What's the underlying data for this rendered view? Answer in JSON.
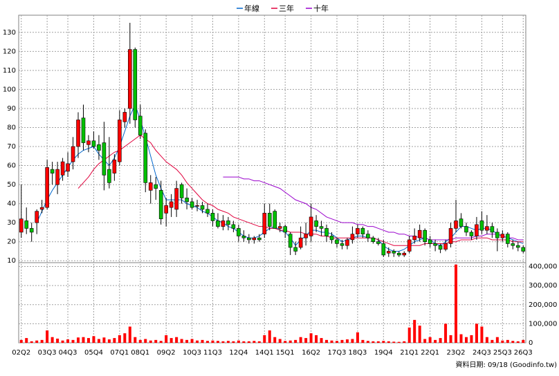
{
  "chart_data": {
    "type": "candlestick",
    "categories": [
      "02Q2",
      null,
      null,
      null,
      null,
      "03Q3",
      null,
      null,
      null,
      "04Q3",
      null,
      null,
      null,
      null,
      "05Q4",
      null,
      null,
      null,
      null,
      "07Q1",
      null,
      null,
      null,
      "08Q1",
      null,
      null,
      null,
      null,
      "09Q2",
      null,
      null,
      null,
      null,
      "10Q3",
      null,
      null,
      null,
      "11Q3",
      null,
      null,
      null,
      null,
      "12Q4",
      null,
      null,
      null,
      null,
      "14Q1",
      null,
      null,
      null,
      "15Q1",
      null,
      null,
      null,
      null,
      "16Q2",
      null,
      null,
      null,
      null,
      "17Q3",
      null,
      null,
      null,
      "18Q3",
      null,
      null,
      null,
      null,
      "19Q4",
      null,
      null,
      null,
      null,
      "21Q1",
      null,
      null,
      null,
      "22Q1",
      null,
      null,
      null,
      null,
      "23Q2",
      null,
      null,
      null,
      null,
      "24Q3",
      null,
      null,
      null,
      "25Q3",
      null,
      null,
      null,
      "26Q3"
    ],
    "open": [
      25,
      31,
      27,
      30,
      37,
      38,
      58,
      50,
      55,
      57,
      62,
      70,
      85,
      71,
      73,
      71,
      72,
      58,
      56,
      62,
      83,
      90,
      121,
      86,
      77,
      47,
      50,
      47,
      35,
      38,
      37,
      50,
      43,
      41,
      39,
      39,
      37,
      35,
      31,
      28,
      31,
      29,
      27,
      23,
      22,
      21,
      22,
      24,
      35,
      36,
      27,
      28,
      24,
      17,
      17,
      22,
      23,
      31,
      28,
      27,
      23,
      21,
      19,
      18,
      21,
      24,
      27,
      24,
      22,
      20,
      19,
      14,
      15,
      14,
      13,
      15,
      21,
      22,
      26,
      21,
      19,
      18,
      16,
      19,
      27,
      32,
      28,
      25,
      23,
      31,
      26,
      28,
      25,
      22,
      24,
      19,
      18,
      17
    ],
    "high": [
      50,
      38,
      30,
      37,
      42,
      63,
      62,
      62,
      64,
      67,
      75,
      88,
      92,
      76,
      78,
      76,
      83,
      75,
      66,
      89,
      90,
      135,
      122,
      92,
      79,
      55,
      54,
      52,
      43,
      45,
      52,
      51,
      48,
      43,
      42,
      41,
      40,
      37,
      35,
      34,
      33,
      31,
      29,
      26,
      24,
      23,
      24,
      40,
      40,
      37,
      30,
      29,
      25,
      20,
      28,
      30,
      40,
      34,
      31,
      29,
      25,
      22,
      21,
      22,
      28,
      29,
      28,
      26,
      23,
      22,
      21,
      17,
      16,
      15,
      15,
      23,
      27,
      29,
      27,
      23,
      21,
      19,
      21,
      30,
      42,
      35,
      30,
      26,
      33,
      36,
      34,
      30,
      27,
      26,
      25,
      21,
      20,
      18
    ],
    "low": [
      22,
      24,
      20,
      24,
      35,
      37,
      50,
      45,
      52,
      54,
      58,
      64,
      68,
      67,
      69,
      63,
      47,
      48,
      52,
      60,
      80,
      82,
      80,
      74,
      46,
      40,
      42,
      29,
      28,
      33,
      33,
      40,
      37,
      37,
      36,
      35,
      33,
      28,
      27,
      26,
      26,
      25,
      20,
      20,
      19,
      19,
      20,
      22,
      26,
      27,
      25,
      22,
      13,
      13,
      16,
      18,
      20,
      25,
      23,
      20,
      19,
      17,
      16,
      16,
      19,
      22,
      22,
      20,
      19,
      18,
      12,
      12,
      12,
      12,
      12,
      14,
      19,
      20,
      18,
      17,
      15,
      14,
      15,
      17,
      25,
      27,
      23,
      21,
      21,
      24,
      24,
      22,
      15,
      20,
      17,
      16,
      15,
      14
    ],
    "close": [
      32,
      27,
      25,
      36,
      38,
      59,
      56,
      58,
      62,
      61,
      70,
      84,
      72,
      73,
      70,
      68,
      55,
      51,
      63,
      84,
      88,
      121,
      84,
      76,
      51,
      51,
      48,
      32,
      39,
      41,
      48,
      43,
      41,
      38,
      39,
      37,
      35,
      31,
      28,
      31,
      29,
      27,
      23,
      22,
      21,
      22,
      21,
      35,
      28,
      27,
      28,
      25,
      17,
      15,
      22,
      24,
      33,
      28,
      27,
      23,
      21,
      19,
      18,
      21,
      24,
      27,
      24,
      22,
      20,
      19,
      13,
      15,
      14,
      13,
      14,
      21,
      23,
      26,
      20,
      19,
      18,
      16,
      19,
      27,
      31,
      28,
      25,
      23,
      29,
      26,
      28,
      25,
      22,
      24,
      19,
      18,
      17,
      15
    ],
    "up_color": "#ff0000",
    "down_color": "#00c000",
    "series": [
      {
        "name": "年線",
        "color": "#0066cc",
        "values": [
          null,
          null,
          null,
          30,
          36,
          42,
          47,
          51,
          55,
          59,
          63,
          66,
          68,
          69,
          70,
          66,
          63,
          60,
          64,
          70,
          78,
          86,
          92,
          84,
          75,
          65,
          55,
          48,
          42,
          42,
          42,
          42,
          40,
          39,
          38,
          36,
          35,
          33,
          31,
          30,
          28,
          27,
          25,
          23,
          22,
          22,
          23,
          25,
          27,
          28,
          26,
          25,
          22,
          18,
          21,
          23,
          26,
          26,
          25,
          25,
          24,
          22,
          20,
          21,
          22,
          23,
          23,
          22,
          22,
          21,
          18,
          16,
          15,
          15,
          16,
          18,
          20,
          21,
          22,
          21,
          19,
          18,
          20,
          22,
          25,
          28,
          28,
          27,
          26,
          27,
          27,
          26,
          24,
          23,
          22,
          21,
          20,
          19
        ]
      },
      {
        "name": "三年",
        "color": "#e0003c",
        "values": [
          null,
          null,
          null,
          null,
          null,
          null,
          null,
          null,
          null,
          null,
          null,
          48,
          51,
          54,
          58,
          61,
          63,
          65,
          67,
          68,
          70,
          72,
          74,
          76,
          74,
          72,
          68,
          65,
          62,
          60,
          58,
          55,
          51,
          48,
          45,
          42,
          40,
          39,
          37,
          36,
          35,
          33,
          32,
          31,
          30,
          29,
          28,
          28,
          27,
          27,
          26,
          26,
          25,
          25,
          25,
          24,
          24,
          24,
          23,
          23,
          22,
          22,
          22,
          22,
          22,
          22,
          22,
          22,
          22,
          21,
          20,
          19,
          18,
          18,
          18,
          18,
          18,
          18,
          19,
          19,
          19,
          19,
          19,
          20,
          20,
          21,
          21,
          21,
          22,
          22,
          22,
          21,
          21,
          21,
          21,
          20,
          20,
          20
        ]
      },
      {
        "name": "十年",
        "color": "#9900cc",
        "values": [
          null,
          null,
          null,
          null,
          null,
          null,
          null,
          null,
          null,
          null,
          null,
          null,
          null,
          null,
          null,
          null,
          null,
          null,
          null,
          null,
          null,
          null,
          null,
          null,
          null,
          null,
          null,
          null,
          null,
          null,
          null,
          null,
          null,
          null,
          null,
          null,
          null,
          null,
          null,
          54,
          54,
          54,
          54,
          53,
          53,
          52,
          52,
          51,
          50,
          49,
          48,
          46,
          44,
          42,
          41,
          40,
          38,
          37,
          35,
          33,
          32,
          31,
          30,
          30,
          30,
          29,
          29,
          28,
          28,
          27,
          26,
          25,
          25,
          24,
          24,
          23,
          23,
          22,
          22,
          21,
          21,
          21,
          21,
          21,
          22,
          22,
          22,
          22,
          23,
          23,
          24,
          24,
          24,
          23,
          22,
          22,
          21,
          21
        ]
      }
    ],
    "volume": {
      "color": "#ff0000",
      "axis": "y2",
      "values": [
        15000,
        25000,
        8000,
        12000,
        15000,
        65000,
        30000,
        22000,
        12000,
        18000,
        15000,
        28000,
        30000,
        25000,
        35000,
        20000,
        28000,
        18000,
        25000,
        40000,
        50000,
        85000,
        30000,
        15000,
        20000,
        12000,
        15000,
        10000,
        40000,
        25000,
        30000,
        20000,
        15000,
        20000,
        12000,
        15000,
        10000,
        12000,
        10000,
        8000,
        10000,
        8000,
        12000,
        8000,
        8000,
        10000,
        8000,
        40000,
        65000,
        30000,
        20000,
        10000,
        12000,
        15000,
        30000,
        25000,
        50000,
        40000,
        25000,
        15000,
        12000,
        10000,
        15000,
        18000,
        20000,
        55000,
        15000,
        10000,
        8000,
        8000,
        10000,
        8000,
        6000,
        5000,
        8000,
        80000,
        120000,
        90000,
        20000,
        30000,
        15000,
        25000,
        100000,
        40000,
        410000,
        45000,
        30000,
        40000,
        100000,
        85000,
        30000,
        15000,
        30000,
        12000,
        15000,
        10000,
        8000,
        15000
      ]
    },
    "ylim": [
      9,
      139
    ],
    "yticks": [
      10,
      20,
      30,
      40,
      50,
      60,
      70,
      80,
      90,
      100,
      110,
      120,
      130
    ],
    "y2lim": [
      0,
      420000
    ],
    "y2ticks": [
      0,
      {
        "value": 100000,
        "label": "100,000"
      },
      {
        "value": 200000,
        "label": "200,000"
      },
      {
        "value": 300000,
        "label": "300,000"
      },
      {
        "value": 400000,
        "label": "400,000"
      }
    ],
    "grid": true,
    "legend": "top",
    "source_note": "資料日期: 09/18 (Goodinfo.tw)"
  }
}
